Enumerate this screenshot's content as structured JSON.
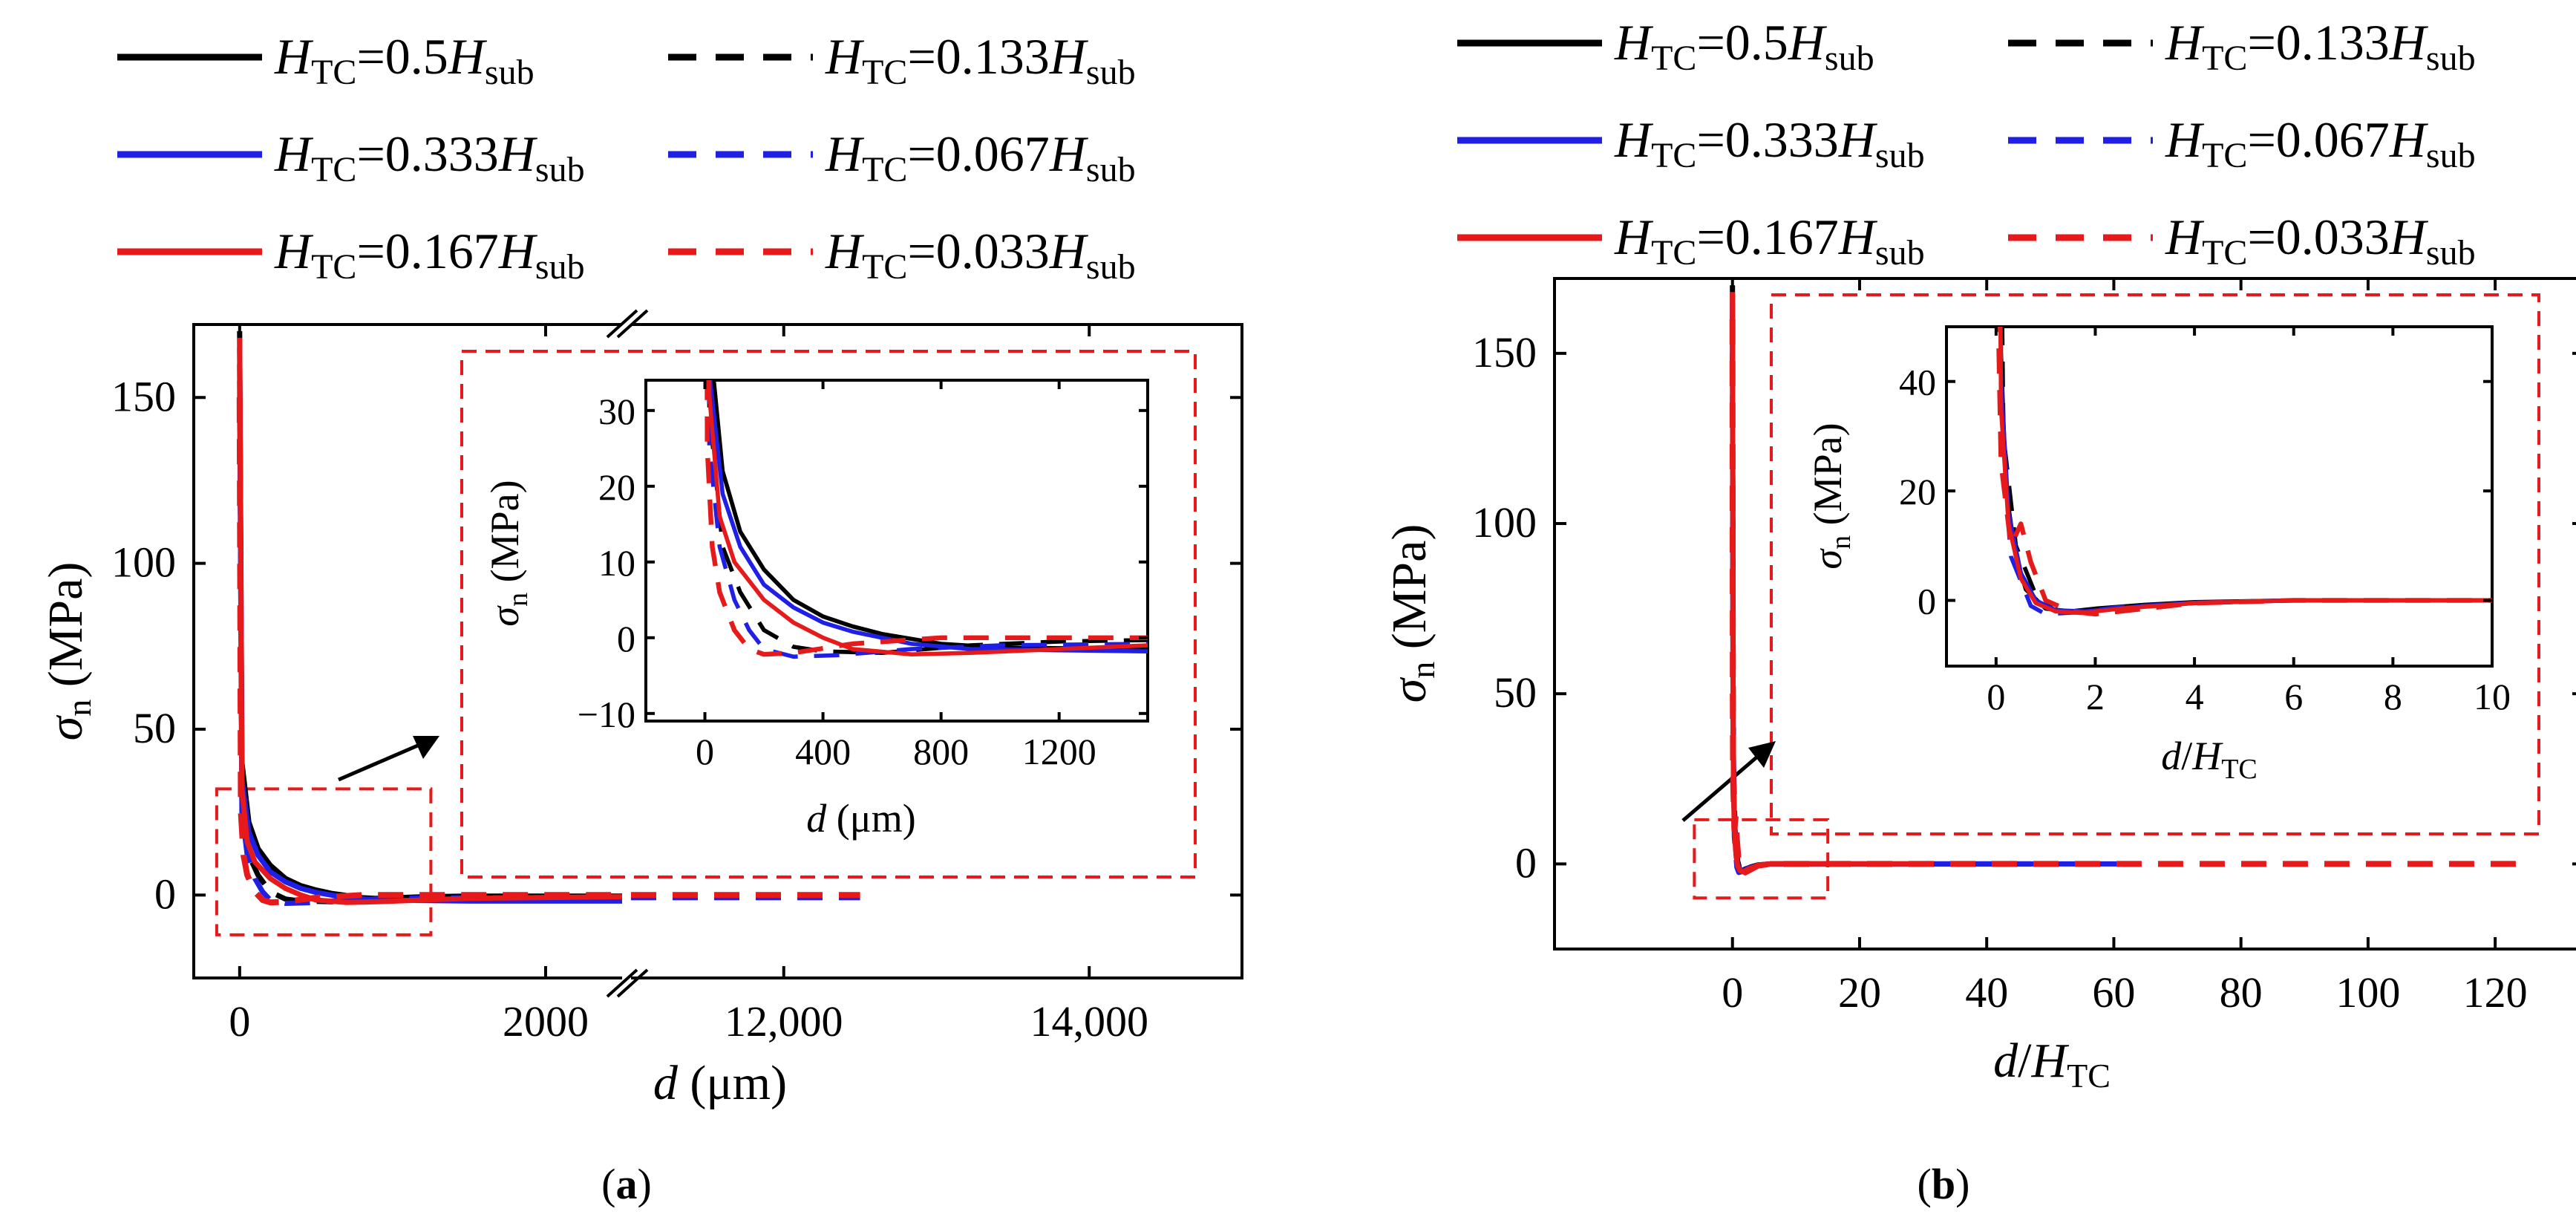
{
  "figure": {
    "panels": [
      {
        "id": "a",
        "label_open": "(",
        "label_letter": "a",
        "label_close": ")"
      },
      {
        "id": "b",
        "label_open": "(",
        "label_letter": "b",
        "label_close": ")"
      }
    ]
  },
  "legend": {
    "items": [
      {
        "h": "H",
        "tc": "TC",
        "eq": "=0.5",
        "h2": "H",
        "sub": "sub",
        "color": "#000000",
        "dash": false
      },
      {
        "h": "H",
        "tc": "TC",
        "eq": "=0.133",
        "h2": "H",
        "sub": "sub",
        "color": "#000000",
        "dash": true
      },
      {
        "h": "H",
        "tc": "TC",
        "eq": "=0.333",
        "h2": "H",
        "sub": "sub",
        "color": "#1f1fe6",
        "dash": false
      },
      {
        "h": "H",
        "tc": "TC",
        "eq": "=0.067",
        "h2": "H",
        "sub": "sub",
        "color": "#1f1fe6",
        "dash": true
      },
      {
        "h": "H",
        "tc": "TC",
        "eq": "=0.167",
        "h2": "H",
        "sub": "sub",
        "color": "#e61a1a",
        "dash": false
      },
      {
        "h": "H",
        "tc": "TC",
        "eq": "=0.033",
        "h2": "H",
        "sub": "sub",
        "color": "#e61a1a",
        "dash": true
      }
    ]
  },
  "colors": {
    "black": "#000000",
    "blue": "#1f1fe6",
    "red": "#e61a1a"
  },
  "chart_data": [
    {
      "panel": "a-main",
      "type": "line",
      "xlabel": {
        "var": "d",
        "unit": " (μm)"
      },
      "ylabel": {
        "var": "σ",
        "sub": "n",
        "unit": " (MPa)"
      },
      "x_broken": true,
      "x_segments": [
        {
          "range": [
            -300,
            2500
          ]
        },
        {
          "range": [
            11000,
            15000
          ]
        }
      ],
      "ylim": [
        -25,
        172
      ],
      "xticks": [
        {
          "v": 0,
          "label": "0"
        },
        {
          "v": 2000,
          "label": "2000"
        },
        {
          "v": 12000,
          "label": "12,000"
        },
        {
          "v": 14000,
          "label": "14,000"
        }
      ],
      "yticks": [
        {
          "v": 0,
          "label": "0"
        },
        {
          "v": 50,
          "label": "50"
        },
        {
          "v": 100,
          "label": "100"
        },
        {
          "v": 150,
          "label": "150"
        }
      ],
      "zoom_box": {
        "x": [
          -150,
          1250
        ],
        "y": [
          -12,
          32
        ]
      }
    },
    {
      "panel": "a-inset",
      "type": "line",
      "xlabel": {
        "var": "d",
        "unit": " (μm)"
      },
      "ylabel": {
        "var": "σ",
        "sub": "n",
        "unit": " (MPa)"
      },
      "xlim": [
        -200,
        1500
      ],
      "ylim": [
        -11,
        34
      ],
      "xticks": [
        {
          "v": 0,
          "label": "0"
        },
        {
          "v": 400,
          "label": "400"
        },
        {
          "v": 800,
          "label": "800"
        },
        {
          "v": 1200,
          "label": "1200"
        }
      ],
      "yticks": [
        {
          "v": -10,
          "label": "−10"
        },
        {
          "v": 0,
          "label": "0"
        },
        {
          "v": 10,
          "label": "10"
        },
        {
          "v": 20,
          "label": "20"
        },
        {
          "v": 30,
          "label": "30"
        }
      ]
    },
    {
      "panel": "b-main",
      "type": "line",
      "xlabel": {
        "var": "d",
        "slash": "/",
        "h": "H",
        "sub": "TC"
      },
      "ylabel": {
        "var": "σ",
        "sub": "n",
        "unit": " (MPa)"
      },
      "xlim": [
        -28,
        134
      ],
      "ylim": [
        -25,
        172
      ],
      "xticks": [
        {
          "v": 0,
          "label": "0"
        },
        {
          "v": 20,
          "label": "20"
        },
        {
          "v": 40,
          "label": "40"
        },
        {
          "v": 60,
          "label": "60"
        },
        {
          "v": 80,
          "label": "80"
        },
        {
          "v": 100,
          "label": "100"
        },
        {
          "v": 120,
          "label": "120"
        }
      ],
      "yticks": [
        {
          "v": 0,
          "label": "0"
        },
        {
          "v": 50,
          "label": "50"
        },
        {
          "v": 100,
          "label": "100"
        },
        {
          "v": 150,
          "label": "150"
        }
      ],
      "zoom_box": {
        "x": [
          -6,
          15
        ],
        "y": [
          -10,
          13
        ]
      }
    },
    {
      "panel": "b-inset",
      "type": "line",
      "xlabel": {
        "var": "d",
        "slash": "/",
        "h": "H",
        "sub": "TC"
      },
      "ylabel": {
        "var": "σ",
        "sub": "n",
        "unit": " (MPa)"
      },
      "xlim": [
        -1,
        10
      ],
      "ylim": [
        -12,
        50
      ],
      "xticks": [
        {
          "v": 0,
          "label": "0"
        },
        {
          "v": 2,
          "label": "2"
        },
        {
          "v": 4,
          "label": "4"
        },
        {
          "v": 6,
          "label": "6"
        },
        {
          "v": 8,
          "label": "8"
        },
        {
          "v": 10,
          "label": "10"
        }
      ],
      "yticks": [
        {
          "v": 0,
          "label": "0"
        },
        {
          "v": 20,
          "label": "20"
        },
        {
          "v": 40,
          "label": "40"
        }
      ]
    }
  ],
  "series": [
    {
      "name": "HTC=0.5Hsub",
      "color": "#000000",
      "dash": false,
      "width": 7,
      "a_points": [
        [
          0,
          170
        ],
        [
          15,
          40
        ],
        [
          60,
          22
        ],
        [
          120,
          14
        ],
        [
          200,
          9
        ],
        [
          300,
          5
        ],
        [
          400,
          2.8
        ],
        [
          500,
          1.5
        ],
        [
          600,
          0.5
        ],
        [
          800,
          -0.8
        ],
        [
          1000,
          -1.3
        ],
        [
          1500,
          -1.5
        ],
        [
          2500,
          -1.5
        ]
      ],
      "a_far": [],
      "b_points": [
        [
          0,
          170
        ],
        [
          0.1,
          45
        ],
        [
          0.2,
          20
        ],
        [
          0.4,
          8
        ],
        [
          0.6,
          2
        ],
        [
          1.0,
          -1.5
        ],
        [
          1.5,
          -2
        ],
        [
          2,
          -1.5
        ],
        [
          3,
          -0.8
        ],
        [
          4,
          -0.3
        ],
        [
          6,
          0
        ],
        [
          10,
          0
        ],
        [
          12.5,
          0
        ]
      ]
    },
    {
      "name": "HTC=0.133Hsub",
      "color": "#000000",
      "dash": true,
      "width": 7,
      "a_points": [
        [
          0,
          160
        ],
        [
          15,
          30
        ],
        [
          60,
          12
        ],
        [
          120,
          6
        ],
        [
          200,
          1
        ],
        [
          300,
          -1.2
        ],
        [
          400,
          -1.8
        ],
        [
          600,
          -2
        ],
        [
          900,
          -1
        ],
        [
          1200,
          -0.5
        ],
        [
          1500,
          -0.3
        ],
        [
          2500,
          -0.3
        ]
      ],
      "a_far": [],
      "b_points": [
        [
          0,
          150
        ],
        [
          0.15,
          30
        ],
        [
          0.4,
          10
        ],
        [
          0.8,
          1
        ],
        [
          1.2,
          -2
        ],
        [
          2,
          -1.8
        ],
        [
          3,
          -1
        ],
        [
          4,
          -0.5
        ],
        [
          6,
          0
        ],
        [
          10,
          0
        ],
        [
          47,
          0
        ]
      ]
    },
    {
      "name": "HTC=0.333Hsub",
      "color": "#1f1fe6",
      "dash": false,
      "width": 7,
      "a_points": [
        [
          0,
          165
        ],
        [
          15,
          35
        ],
        [
          60,
          19
        ],
        [
          120,
          12
        ],
        [
          200,
          7
        ],
        [
          300,
          4
        ],
        [
          400,
          2
        ],
        [
          500,
          0.8
        ],
        [
          700,
          -0.8
        ],
        [
          900,
          -1.5
        ],
        [
          1500,
          -1.8
        ],
        [
          2500,
          -1.8
        ]
      ],
      "a_far": [],
      "b_points": [
        [
          0,
          165
        ],
        [
          0.1,
          40
        ],
        [
          0.25,
          16
        ],
        [
          0.5,
          5
        ],
        [
          0.8,
          0
        ],
        [
          1.2,
          -1.8
        ],
        [
          1.8,
          -2
        ],
        [
          3,
          -1
        ],
        [
          4,
          -0.4
        ],
        [
          6,
          0
        ],
        [
          10,
          0
        ],
        [
          18.8,
          0
        ]
      ]
    },
    {
      "name": "HTC=0.067Hsub",
      "color": "#1f1fe6",
      "dash": true,
      "width": 7,
      "a_points": [
        [
          0,
          155
        ],
        [
          15,
          25
        ],
        [
          50,
          12
        ],
        [
          100,
          5
        ],
        [
          150,
          1
        ],
        [
          200,
          -1.5
        ],
        [
          300,
          -2.5
        ],
        [
          450,
          -2.3
        ],
        [
          700,
          -1.5
        ],
        [
          1000,
          -1
        ],
        [
          1500,
          -0.8
        ],
        [
          2500,
          -0.8
        ]
      ],
      "a_far": [
        [
          11000,
          -0.8
        ],
        [
          12500,
          -0.8
        ]
      ],
      "b_points": [
        [
          0,
          160
        ],
        [
          0.1,
          30
        ],
        [
          0.3,
          8
        ],
        [
          0.7,
          -1
        ],
        [
          1,
          -2.5
        ],
        [
          1.6,
          -2.2
        ],
        [
          2.5,
          -1.2
        ],
        [
          4,
          -0.5
        ],
        [
          6,
          0
        ],
        [
          10,
          0
        ],
        [
          62,
          0
        ]
      ]
    },
    {
      "name": "HTC=0.167Hsub",
      "color": "#e61a1a",
      "dash": false,
      "width": 7,
      "a_points": [
        [
          0,
          168
        ],
        [
          15,
          32
        ],
        [
          50,
          16
        ],
        [
          100,
          10
        ],
        [
          200,
          5
        ],
        [
          300,
          2
        ],
        [
          400,
          0
        ],
        [
          500,
          -1.5
        ],
        [
          700,
          -2.2
        ],
        [
          900,
          -2
        ],
        [
          1200,
          -1.5
        ],
        [
          1500,
          -1
        ],
        [
          2500,
          -0.5
        ]
      ],
      "a_far": [],
      "b_points": [
        [
          0,
          168
        ],
        [
          0.1,
          35
        ],
        [
          0.25,
          14
        ],
        [
          0.5,
          4
        ],
        [
          0.8,
          -0.5
        ],
        [
          1.2,
          -2
        ],
        [
          1.7,
          -2.3
        ],
        [
          2.5,
          -1.5
        ],
        [
          4,
          -0.5
        ],
        [
          6,
          0
        ],
        [
          10,
          0
        ],
        [
          31.3,
          0
        ]
      ]
    },
    {
      "name": "HTC=0.033Hsub",
      "color": "#e61a1a",
      "dash": true,
      "width": 8,
      "a_points": [
        [
          0,
          150
        ],
        [
          8,
          25
        ],
        [
          25,
          12
        ],
        [
          50,
          6
        ],
        [
          100,
          1
        ],
        [
          150,
          -1.5
        ],
        [
          200,
          -2.2
        ],
        [
          300,
          -2
        ],
        [
          500,
          -0.8
        ],
        [
          800,
          0
        ],
        [
          1500,
          0
        ],
        [
          2500,
          0
        ]
      ],
      "a_far": [
        [
          11000,
          0
        ],
        [
          12500,
          0
        ]
      ],
      "b_points": [
        [
          0,
          160
        ],
        [
          0.05,
          48
        ],
        [
          0.1,
          25
        ],
        [
          0.3,
          10
        ],
        [
          0.5,
          14
        ],
        [
          0.7,
          7
        ],
        [
          1,
          0
        ],
        [
          1.5,
          -2
        ],
        [
          2,
          -2.5
        ],
        [
          3,
          -1.5
        ],
        [
          4,
          -0.5
        ],
        [
          6,
          0
        ],
        [
          10,
          0
        ],
        [
          125,
          0
        ]
      ]
    }
  ]
}
